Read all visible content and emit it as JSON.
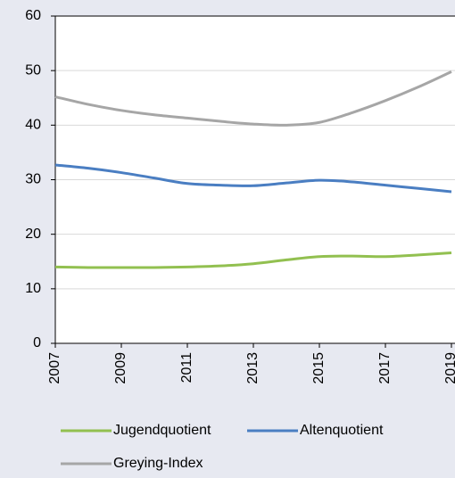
{
  "chart_data": {
    "type": "line",
    "x": [
      2007,
      2008,
      2009,
      2010,
      2011,
      2012,
      2013,
      2014,
      2015,
      2016,
      2017,
      2018,
      2019
    ],
    "xlim": [
      2007,
      2019
    ],
    "xticks": [
      2007,
      2009,
      2011,
      2013,
      2015,
      2017,
      2019
    ],
    "ylim": [
      0,
      60
    ],
    "yticks": [
      0,
      10,
      20,
      30,
      40,
      50,
      60
    ],
    "grid": true,
    "legend": "bottom",
    "series": [
      {
        "name": "Jugendquotient",
        "color": "#92c050",
        "values": [
          14.0,
          13.9,
          13.9,
          13.9,
          14.0,
          14.2,
          14.6,
          15.3,
          15.9,
          16.0,
          15.9,
          16.2,
          16.6
        ]
      },
      {
        "name": "Altenquotient",
        "color": "#4a7ec2",
        "values": [
          32.7,
          32.1,
          31.3,
          30.3,
          29.3,
          29.0,
          28.9,
          29.4,
          29.9,
          29.6,
          29.0,
          28.4,
          27.8
        ]
      },
      {
        "name": "Greying-Index",
        "color": "#a6a6a6",
        "values": [
          45.2,
          43.8,
          42.7,
          41.9,
          41.3,
          40.7,
          40.2,
          40.0,
          40.5,
          42.3,
          44.5,
          47.0,
          49.8
        ]
      }
    ]
  }
}
